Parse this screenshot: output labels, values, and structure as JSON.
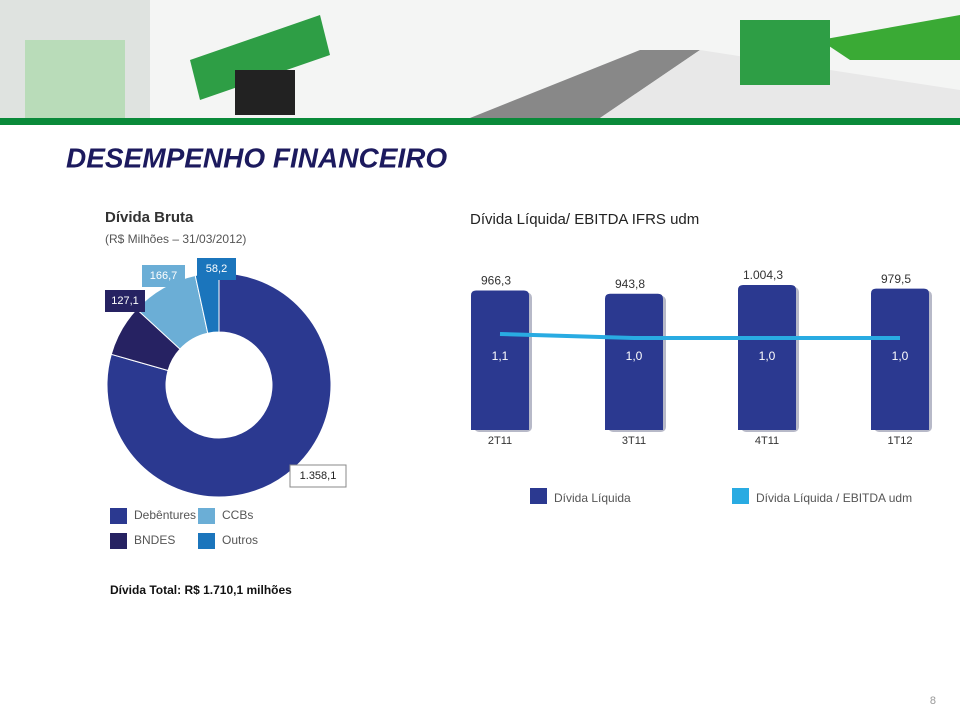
{
  "title": "DESEMPENHO FINANCEIRO",
  "page_number": "8",
  "chart_data": [
    {
      "type": "donut",
      "title": "Dívida Bruta",
      "subtitle": "(R$ Milhões – 31/03/2012)",
      "categories": [
        "Debêntures",
        "BNDES",
        "CCBs",
        "Outros"
      ],
      "values": [
        1358.1,
        127.1,
        166.7,
        58.2
      ],
      "value_labels": [
        "1.358,1",
        "127,1",
        "166,7",
        "58,2"
      ],
      "colors": [
        "#2b3990",
        "#262262",
        "#6baed6",
        "#1b75bc"
      ],
      "total_label": "Dívida Total: R$ 1.710,1 milhões"
    },
    {
      "type": "combo",
      "title": "Dívida Líquida/ EBITDA IFRS udm",
      "categories": [
        "2T11",
        "3T11",
        "4T11",
        "1T12"
      ],
      "series": [
        {
          "name": "Dívida Líquida",
          "type": "bar",
          "color": "#2b3990",
          "values": [
            966.3,
            943.8,
            1004.3,
            979.5
          ],
          "value_labels": [
            "966,3",
            "943,8",
            "1.004,3",
            "979,5"
          ]
        },
        {
          "name": "Dívida Líquida / EBITDA udm",
          "type": "line",
          "axis": "y2",
          "color": "#29abe2",
          "values": [
            1.1,
            1.0,
            1.0,
            1.0
          ],
          "value_labels": [
            "1,1",
            "1,0",
            "1,0",
            "1,0"
          ]
        }
      ]
    }
  ]
}
